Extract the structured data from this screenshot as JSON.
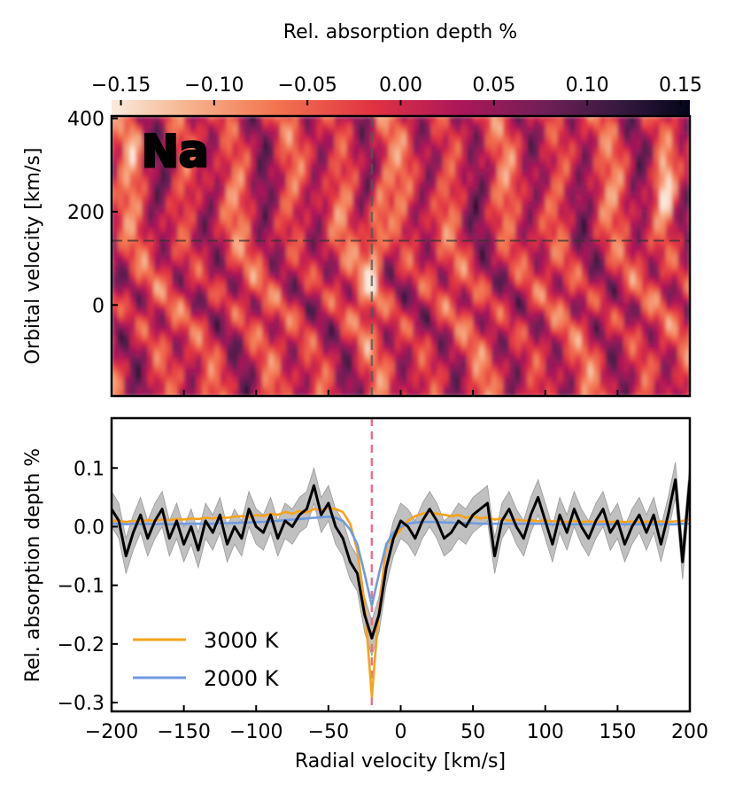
{
  "colorbar": {
    "label": "Rel. absorption depth %",
    "ticks": [
      -0.15,
      -0.1,
      -0.05,
      0.0,
      0.05,
      0.1,
      0.15
    ],
    "tick_labels": [
      "−0.15",
      "−0.10",
      "−0.05",
      "0.00",
      "0.05",
      "0.10",
      "0.15"
    ],
    "range": [
      -0.155,
      0.155
    ],
    "colormap": "rocket_r"
  },
  "chart_data": [
    {
      "type": "heatmap",
      "species_label": "Na",
      "ylabel": "Orbital velocity [km/s]",
      "xlim": [
        -200,
        200
      ],
      "ylim": [
        -195,
        405
      ],
      "yticks": [
        0,
        200,
        400
      ],
      "ytick_labels": [
        "0",
        "200",
        "400"
      ],
      "markers": {
        "vertical_rv": -20,
        "horizontal_kp": 138
      },
      "signal": {
        "rv_at_kp0": -22,
        "rv_slope_per_kp": 0.03,
        "depth_at_peak_kp": -0.14,
        "peak_kp": 138,
        "description_values": "absorption ridge along rv=-20 km/s, strongest near Kp 60-280"
      },
      "secondary_features": [
        {
          "rv": 183,
          "kp": 250,
          "depth": -0.13
        },
        {
          "rv": -185,
          "kp": 360,
          "depth": -0.07
        }
      ],
      "value_range": [
        -0.15,
        0.15
      ]
    },
    {
      "type": "line",
      "xlabel": "Radial velocity [km/s]",
      "ylabel": "Rel. absorption depth %",
      "xlim": [
        -200,
        200
      ],
      "ylim": [
        -0.315,
        0.185
      ],
      "xticks": [
        -200,
        -150,
        -100,
        -50,
        0,
        50,
        100,
        150,
        200
      ],
      "xtick_labels": [
        "−200",
        "−150",
        "−100",
        "−50",
        "0",
        "50",
        "100",
        "150",
        "200"
      ],
      "yticks": [
        -0.3,
        -0.2,
        -0.1,
        0.0,
        0.1
      ],
      "ytick_labels": [
        "−0.3",
        "−0.2",
        "−0.1",
        "0.0",
        "0.1"
      ],
      "vline": {
        "x": -20,
        "color": "#e8708a"
      },
      "legend_position": "lower-left",
      "x": [
        -200,
        -195,
        -190,
        -185,
        -180,
        -175,
        -170,
        -165,
        -160,
        -155,
        -150,
        -145,
        -140,
        -135,
        -130,
        -125,
        -120,
        -115,
        -110,
        -105,
        -100,
        -95,
        -90,
        -85,
        -80,
        -75,
        -70,
        -65,
        -60,
        -55,
        -50,
        -45,
        -40,
        -35,
        -30,
        -25,
        -20,
        -15,
        -10,
        -5,
        0,
        5,
        10,
        15,
        20,
        25,
        30,
        35,
        40,
        45,
        50,
        55,
        60,
        65,
        70,
        75,
        80,
        85,
        90,
        95,
        100,
        105,
        110,
        115,
        120,
        125,
        130,
        135,
        140,
        145,
        150,
        155,
        160,
        165,
        170,
        175,
        180,
        185,
        190,
        195,
        200
      ],
      "series": [
        {
          "name": "3000 K",
          "color": "#f5a31a",
          "values": [
            0.01,
            0.01,
            0.008,
            0.01,
            0.009,
            0.011,
            0.01,
            0.012,
            0.011,
            0.013,
            0.012,
            0.014,
            0.013,
            0.015,
            0.014,
            0.016,
            0.015,
            0.017,
            0.018,
            0.016,
            0.02,
            0.018,
            0.022,
            0.02,
            0.025,
            0.022,
            0.027,
            0.024,
            0.03,
            0.028,
            0.032,
            0.03,
            0.025,
            0.005,
            -0.04,
            -0.13,
            -0.29,
            -0.14,
            -0.03,
            -0.02,
            -0.005,
            0.01,
            0.018,
            0.022,
            0.025,
            0.022,
            0.02,
            0.018,
            0.02,
            0.015,
            0.018,
            0.014,
            0.016,
            0.012,
            0.014,
            0.01,
            0.012,
            0.01,
            0.011,
            0.009,
            0.011,
            0.009,
            0.01,
            0.008,
            0.01,
            0.008,
            0.009,
            0.008,
            0.009,
            0.008,
            0.009,
            0.008,
            0.009,
            0.008,
            0.009,
            0.008,
            0.009,
            0.008,
            0.009,
            0.01,
            0.012
          ]
        },
        {
          "name": "2000 K",
          "color": "#6f9be0",
          "values": [
            0.005,
            0.005,
            0.004,
            0.005,
            0.004,
            0.005,
            0.004,
            0.005,
            0.004,
            0.005,
            0.005,
            0.005,
            0.005,
            0.005,
            0.005,
            0.006,
            0.006,
            0.006,
            0.007,
            0.007,
            0.008,
            0.008,
            0.009,
            0.01,
            0.011,
            0.012,
            0.013,
            0.014,
            0.015,
            0.016,
            0.017,
            0.015,
            0.01,
            -0.005,
            -0.03,
            -0.08,
            -0.135,
            -0.08,
            -0.03,
            -0.01,
            0.0,
            0.005,
            0.007,
            0.008,
            0.008,
            0.008,
            0.007,
            0.007,
            0.006,
            0.006,
            0.006,
            0.005,
            0.005,
            0.005,
            0.005,
            0.005,
            0.005,
            0.005,
            0.005,
            0.005,
            0.005,
            0.004,
            0.004,
            0.004,
            0.004,
            0.004,
            0.004,
            0.004,
            0.004,
            0.004,
            0.004,
            0.004,
            0.004,
            0.004,
            0.004,
            0.004,
            0.004,
            0.004,
            0.004,
            0.005,
            0.005
          ]
        },
        {
          "name": "",
          "color": "#000000",
          "uncertainty": 0.03,
          "values": [
            0.03,
            0.01,
            -0.05,
            -0.01,
            0.02,
            -0.02,
            0.01,
            0.03,
            -0.02,
            0.01,
            -0.03,
            0.0,
            -0.04,
            0.01,
            -0.01,
            0.02,
            -0.03,
            0.0,
            -0.02,
            0.03,
            0.0,
            -0.01,
            0.02,
            -0.02,
            0.01,
            0.0,
            0.02,
            0.03,
            0.07,
            0.02,
            0.04,
            0.0,
            -0.02,
            -0.06,
            -0.08,
            -0.15,
            -0.19,
            -0.15,
            -0.07,
            -0.02,
            0.01,
            0.0,
            -0.02,
            0.01,
            0.03,
            0.01,
            -0.02,
            -0.01,
            0.01,
            0.0,
            0.02,
            0.03,
            0.04,
            -0.05,
            0.01,
            0.03,
            0.0,
            -0.02,
            0.02,
            0.05,
            0.01,
            -0.03,
            0.02,
            -0.01,
            0.03,
            0.0,
            -0.02,
            0.01,
            0.03,
            -0.01,
            0.01,
            -0.03,
            0.0,
            0.02,
            -0.01,
            0.02,
            -0.03,
            0.02,
            0.08,
            -0.06,
            0.08
          ]
        }
      ]
    }
  ]
}
